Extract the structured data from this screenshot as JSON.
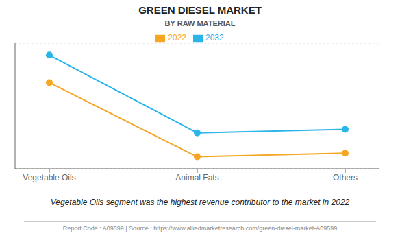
{
  "chart_data": {
    "type": "line",
    "title": "GREEN DIESEL MARKET",
    "subtitle": "BY RAW MATERIAL",
    "categories": [
      "Vegetable Oils",
      "Animal Fats",
      "Others"
    ],
    "series": [
      {
        "name": "2022",
        "color": "#F5A623",
        "values": [
          0.72,
          0.1,
          0.13
        ]
      },
      {
        "name": "2032",
        "color": "#29B5E8",
        "values": [
          0.95,
          0.3,
          0.33
        ]
      }
    ],
    "ylim": [
      0.0,
      1.05
    ],
    "yticks": [
      0,
      0.2,
      0.4,
      0.6,
      0.8,
      1.0
    ],
    "grid": true,
    "tick_labels": "x",
    "legend": "top",
    "marker": "circle",
    "annotations": [
      "Vegetable Oils segment was the highest revenue contributor to the market in 2022",
      "Report Code : A09599  |  Source : https://www.alliedmarketresearch.com/green-diesel-market-A09599"
    ]
  }
}
